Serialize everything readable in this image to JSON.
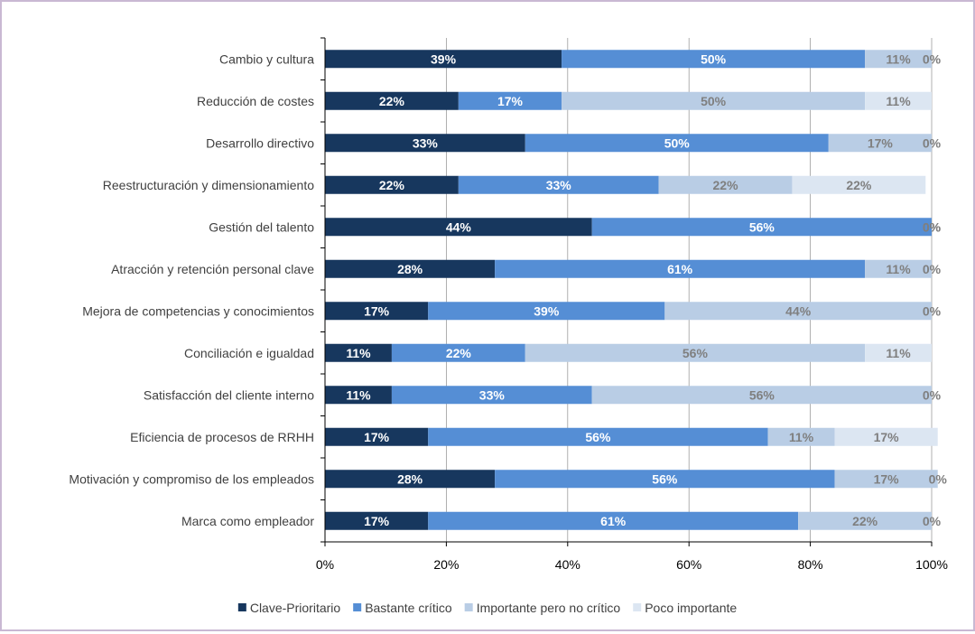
{
  "colors": {
    "series": [
      "#17375e",
      "#558ed5",
      "#b9cde5",
      "#dce6f2"
    ],
    "segment_label": [
      "#ffffff",
      "#ffffff",
      "#7f7f7f",
      "#7f7f7f"
    ],
    "grid": "#9c9c9c",
    "axis": "#000000",
    "category_text": "#404040"
  },
  "chart_data": {
    "type": "bar",
    "orientation": "horizontal",
    "stacked": "percent",
    "categories": [
      "Cambio y cultura",
      "Reducción de costes",
      "Desarrollo directivo",
      "Reestructuración y dimensionamiento",
      "Gestión del talento",
      "Atracción y retención personal clave",
      "Mejora de competencias y conocimientos",
      "Conciliación e igualdad",
      "Satisfacción del cliente interno",
      "Eficiencia de procesos de RRHH",
      "Motivación y  compromiso de los empleados",
      "Marca como empleador"
    ],
    "series": [
      {
        "name": "Clave-Prioritario",
        "values": [
          39,
          22,
          33,
          22,
          44,
          28,
          17,
          11,
          11,
          17,
          28,
          17
        ]
      },
      {
        "name": "Bastante crítico",
        "values": [
          50,
          17,
          50,
          33,
          56,
          61,
          39,
          22,
          33,
          56,
          56,
          61
        ]
      },
      {
        "name": "Importante pero no crítico",
        "values": [
          11,
          50,
          17,
          22,
          0,
          11,
          44,
          56,
          56,
          11,
          17,
          22
        ]
      },
      {
        "name": "Poco importante",
        "values": [
          0,
          11,
          0,
          22,
          0,
          0,
          0,
          11,
          0,
          17,
          0,
          0
        ]
      }
    ],
    "value_suffix": "%",
    "xlim": [
      0,
      100
    ],
    "xticks": [
      0,
      20,
      40,
      60,
      80,
      100
    ],
    "xtick_labels": [
      "0%",
      "20%",
      "40%",
      "60%",
      "80%",
      "100%"
    ],
    "grid": true,
    "legend_position": "bottom"
  }
}
